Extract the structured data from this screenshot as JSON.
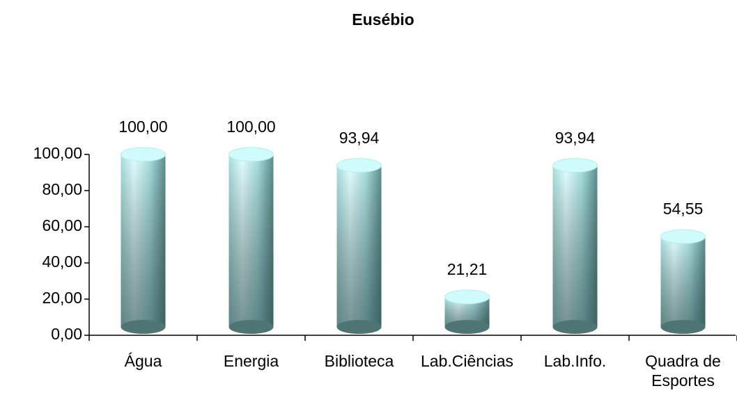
{
  "chart_data": {
    "type": "bar",
    "title": "Eusébio",
    "categories": [
      "Água",
      "Energia",
      "Biblioteca",
      "Lab.Ciências",
      "Lab.Info.",
      "Quadra de Esportes"
    ],
    "values": [
      100,
      100,
      93.94,
      21.21,
      93.94,
      54.55
    ],
    "value_labels": [
      "100,00",
      "100,00",
      "93,94",
      "21,21",
      "93,94",
      "54,55"
    ],
    "color": "#a8e4e4",
    "ylim": [
      0,
      100
    ],
    "yticks": [
      {
        "value": 0,
        "label": "0,00"
      },
      {
        "value": 20,
        "label": "20,00"
      },
      {
        "value": 40,
        "label": "40,00"
      },
      {
        "value": 60,
        "label": "60,00"
      },
      {
        "value": 80,
        "label": "80,00"
      },
      {
        "value": 100,
        "label": "100,00"
      }
    ],
    "grid": false
  }
}
